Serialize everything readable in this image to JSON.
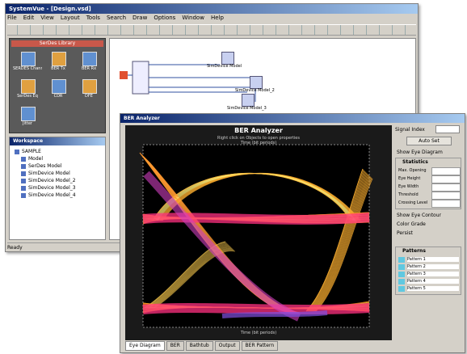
{
  "main_window": {
    "title": "SystemVue - [Design.vsd]",
    "menu": [
      "File",
      "Edit",
      "View",
      "Layout",
      "Tools",
      "Search",
      "Draw",
      "Options",
      "Window",
      "Help"
    ],
    "library_header": "SerDes Library",
    "library_items": [
      "SERDES Channel",
      "BER Tx",
      "BER Rx",
      "SerDes Eq",
      "CDR",
      "DFE",
      "Jitter"
    ],
    "tree_title": "Workspace",
    "tree_items": [
      "SAMPLE",
      "Model",
      "SerDes Model",
      "SimDevice Model",
      "SimDevice Model_2",
      "SimDevice Model_3",
      "SimDevice Model_4"
    ],
    "blocks": [
      "SimDevice Model",
      "SimDevice Model_2",
      "SimDevice Model_3"
    ],
    "status": "Ready"
  },
  "ber_window": {
    "title": "BER Analyzer",
    "plot_title": "BER Analyzer",
    "hint": "Right click on Objects to open properties",
    "x_label": "Time (bit periods)",
    "signal_label": "Signal Index",
    "auto_set": "Auto Set",
    "show_eye": "Show Eye Diagram",
    "statistics_header": "Statistics",
    "stats": [
      "Max. Opening",
      "Eye Height",
      "Eye Width",
      "Threshold",
      "Crossing Level"
    ],
    "options": [
      "Show Eye Contour",
      "Color Grade",
      "Persist"
    ],
    "patterns_header": "Patterns",
    "patterns": [
      "Pattern 1",
      "Pattern 2",
      "Pattern 3",
      "Pattern 4",
      "Pattern 5"
    ],
    "tabs": [
      "Eye Diagram",
      "BER",
      "Bathtub",
      "Output",
      "BER Pattern"
    ]
  }
}
